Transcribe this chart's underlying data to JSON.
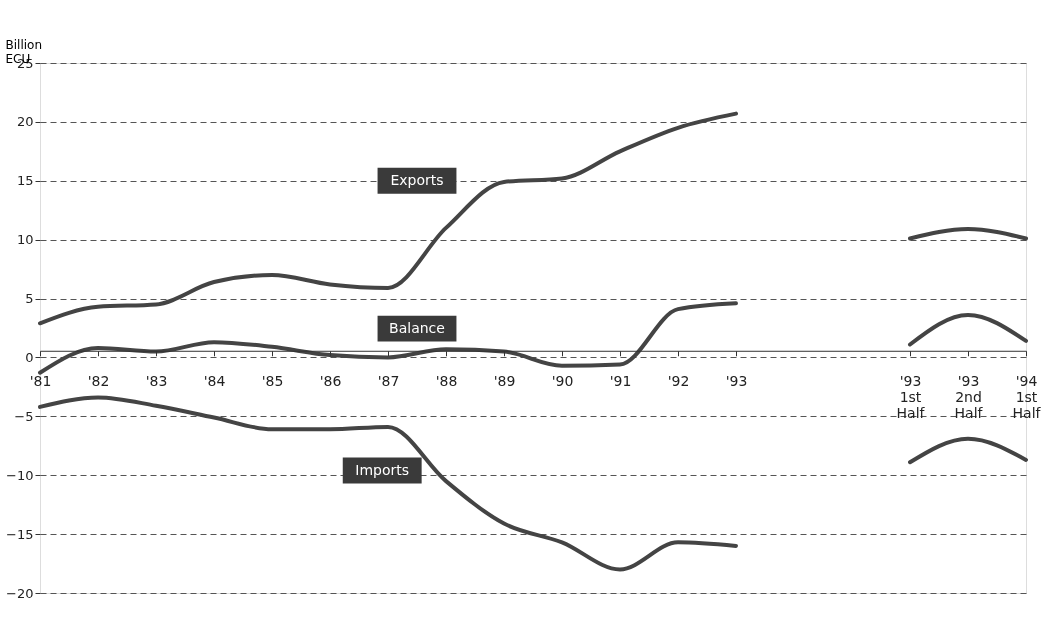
{
  "chart_data": {
    "type": "line",
    "ylabel": "Billion ECU",
    "categories": [
      "'81",
      "'82",
      "'83",
      "'84",
      "'85",
      "'86",
      "'87",
      "'88",
      "'89",
      "'90",
      "'91",
      "'92",
      "'93",
      null,
      null,
      "'93\n1st\nHalf",
      "'93\n2nd\nHalf",
      "'94\n1st\nHalf"
    ],
    "series": [
      {
        "name": "Exports",
        "color": "#444444",
        "values": [
          2.9,
          4.3,
          4.5,
          6.4,
          7.0,
          6.2,
          5.9,
          11.0,
          14.9,
          15.2,
          17.5,
          19.5,
          20.7,
          null,
          null,
          10.1,
          10.9,
          10.1
        ]
      },
      {
        "name": "Balance",
        "color": "#444444",
        "values": [
          -1.3,
          0.8,
          0.5,
          1.3,
          0.9,
          0.2,
          0.0,
          0.7,
          0.5,
          -0.7,
          -0.6,
          4.1,
          4.6,
          null,
          null,
          1.1,
          3.6,
          1.4
        ]
      },
      {
        "name": "Imports",
        "color": "#444444",
        "values": [
          -4.2,
          -3.4,
          -4.1,
          -5.1,
          -6.1,
          -6.1,
          -5.9,
          -10.5,
          -14.1,
          -15.7,
          -18.0,
          -15.7,
          -16.0,
          null,
          null,
          -8.9,
          -6.9,
          -8.7
        ]
      }
    ],
    "ylim": [
      -20,
      25
    ],
    "yticks": [
      -20,
      -15,
      -10,
      -5,
      0,
      5,
      10,
      15,
      20,
      25
    ],
    "grid": "y",
    "marker": "none",
    "line_style": "solid"
  }
}
